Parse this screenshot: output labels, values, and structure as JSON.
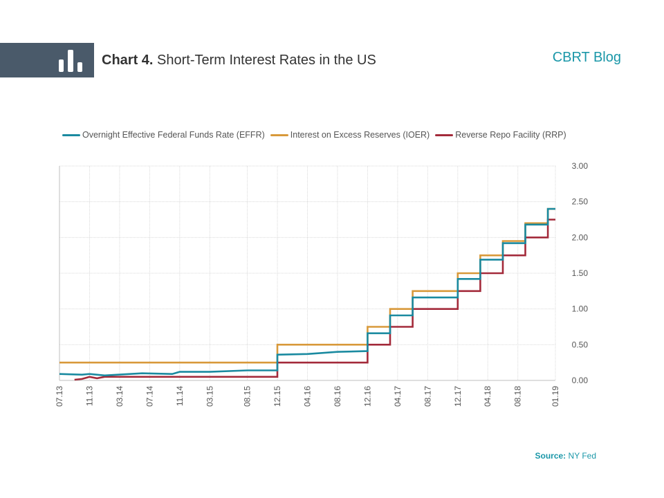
{
  "header": {
    "chart_number": "Chart 4.",
    "title": "Short-Term Interest Rates in the US",
    "brand": "CBRT Blog",
    "logo_icon": "bar-chart-icon"
  },
  "source": {
    "label": "Source:",
    "value": "NY Fed"
  },
  "colors": {
    "EFFR": "#1a8aa0",
    "IOER": "#d8993a",
    "RRP": "#a32a3a",
    "header_block": "#4a5a6a",
    "brand": "#1a97a8"
  },
  "chart_data": {
    "type": "line",
    "title": "Short-Term Interest Rates in the US",
    "xlabel": "",
    "ylabel": "",
    "ylim": [
      0,
      3
    ],
    "xlim": [
      "2013-07",
      "2019-01"
    ],
    "yaxis_position": "right",
    "grid": true,
    "legend_position": "top",
    "x_ticks": [
      "07.13",
      "11.13",
      "03.14",
      "07.14",
      "11.14",
      "03.15",
      "08.15",
      "12.15",
      "04.16",
      "08.16",
      "12.16",
      "04.17",
      "08.17",
      "12.17",
      "04.18",
      "08.18",
      "01.19"
    ],
    "y_ticks": [
      "0.00",
      "0.50",
      "1.00",
      "1.50",
      "2.00",
      "2.50",
      "3.00"
    ],
    "series": [
      {
        "name": "Overnight Effective Federal Funds Rate (EFFR)",
        "x": [
          "2013-07",
          "2013-10",
          "2013-11",
          "2014-01",
          "2014-06",
          "2014-10",
          "2014-11",
          "2015-03",
          "2015-08",
          "2015-12",
          "2015-12",
          "2016-04",
          "2016-08",
          "2016-12",
          "2016-12",
          "2017-03",
          "2017-03",
          "2017-06",
          "2017-06",
          "2017-12",
          "2017-12",
          "2018-03",
          "2018-03",
          "2018-06",
          "2018-06",
          "2018-09",
          "2018-09",
          "2018-12",
          "2018-12",
          "2019-01"
        ],
        "y": [
          0.09,
          0.08,
          0.09,
          0.07,
          0.1,
          0.09,
          0.12,
          0.12,
          0.14,
          0.14,
          0.36,
          0.37,
          0.4,
          0.41,
          0.66,
          0.66,
          0.91,
          0.91,
          1.16,
          1.16,
          1.42,
          1.42,
          1.69,
          1.69,
          1.92,
          1.92,
          2.18,
          2.18,
          2.4,
          2.4
        ]
      },
      {
        "name": "Interest on Excess Reserves (IOER)",
        "x": [
          "2013-07",
          "2015-12",
          "2015-12",
          "2016-12",
          "2016-12",
          "2017-03",
          "2017-03",
          "2017-06",
          "2017-06",
          "2017-12",
          "2017-12",
          "2018-03",
          "2018-03",
          "2018-06",
          "2018-06",
          "2018-09",
          "2018-09",
          "2018-12",
          "2018-12",
          "2019-01"
        ],
        "y": [
          0.25,
          0.25,
          0.5,
          0.5,
          0.75,
          0.75,
          1.0,
          1.0,
          1.25,
          1.25,
          1.5,
          1.5,
          1.75,
          1.75,
          1.95,
          1.95,
          2.2,
          2.2,
          2.4,
          2.4
        ]
      },
      {
        "name": "Reverse Repo Facility (RRP)",
        "x": [
          "2013-09",
          "2013-10",
          "2013-11",
          "2013-12",
          "2014-01",
          "2014-12",
          "2015-01",
          "2015-12",
          "2015-12",
          "2016-12",
          "2016-12",
          "2017-03",
          "2017-03",
          "2017-06",
          "2017-06",
          "2017-12",
          "2017-12",
          "2018-03",
          "2018-03",
          "2018-06",
          "2018-06",
          "2018-09",
          "2018-09",
          "2018-12",
          "2018-12",
          "2019-01"
        ],
        "y": [
          0.01,
          0.02,
          0.05,
          0.03,
          0.05,
          0.05,
          0.05,
          0.05,
          0.25,
          0.25,
          0.5,
          0.5,
          0.75,
          0.75,
          1.0,
          1.0,
          1.25,
          1.25,
          1.5,
          1.5,
          1.75,
          1.75,
          2.0,
          2.0,
          2.25,
          2.25
        ]
      }
    ]
  }
}
